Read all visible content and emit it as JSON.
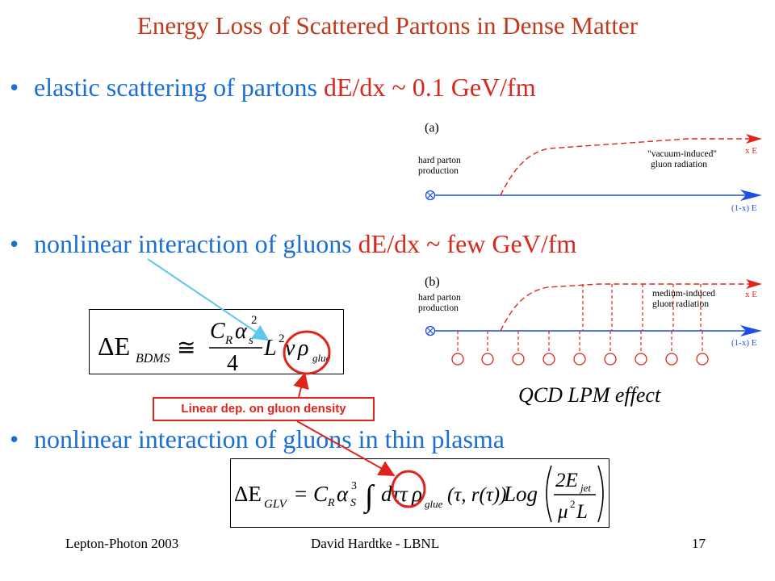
{
  "slide": {
    "title": "Energy Loss of Scattered Partons in Dense Matter",
    "bullet_symbol": "•",
    "bullets": [
      {
        "text": "elastic scattering of partons ",
        "highlight": "dE/dx ~ 0.1 GeV/fm"
      },
      {
        "text": "nonlinear interaction of gluons ",
        "highlight": "dE/dx ~ few GeV/fm"
      },
      {
        "text": "nonlinear interaction of gluons in thin plasma",
        "highlight": ""
      }
    ],
    "callout": "Linear dep. on gluon density",
    "lpm_caption": "QCD LPM effect"
  },
  "diagrams": {
    "a": {
      "label": "(a)",
      "left_line1": "hard parton",
      "left_line2": "production",
      "radiation_line1": "\"vacuum-induced\"",
      "radiation_line2": "gluon radiation",
      "top_label": "x E",
      "bottom_label": "(1-x) E"
    },
    "b": {
      "label": "(b)",
      "left_line1": "hard parton",
      "left_line2": "production",
      "radiation_line1": "medium-induced",
      "radiation_line2": "gluon radiation",
      "top_label": "x E",
      "bottom_label": "(1-x) E"
    }
  },
  "equations": {
    "bdms": {
      "delta_e": "ΔE",
      "subscript": "BDMS",
      "approx": "≅",
      "numerator": "C",
      "num_sub": "R",
      "alpha": "α",
      "alpha_sub": "s",
      "power": "2",
      "denominator": "4",
      "length": "L",
      "len_power": "2",
      "nu": "ν",
      "rho": "ρ",
      "rho_sub": "glue"
    },
    "glv": {
      "delta_e": "ΔE",
      "subscript": "GLV",
      "equals": "=",
      "c": "C",
      "c_sub": "R",
      "alpha": "α",
      "alpha_sub": "S",
      "alpha_pow": "3",
      "integral": "∫",
      "d_tau": "dττ",
      "rho": "ρ",
      "rho_sub": "glue",
      "args": "(τ, r(τ))",
      "log": "Log",
      "num": "2E",
      "num_sub": "jet",
      "den_mu": "μ",
      "den_pow": "2",
      "den_l": "L"
    }
  },
  "footer": {
    "left": "Lepton-Photon 2003",
    "center": "David Hardtke - LBNL",
    "page": "17"
  },
  "colors": {
    "title": "#c0391b",
    "bullet": "#1a6fd6",
    "highlight": "#d8281e",
    "callout": "#e0241c",
    "arrow_blue": "#5ec8ec",
    "diagram_blue": "#1f4fe0",
    "diagram_red": "#e0241c"
  }
}
